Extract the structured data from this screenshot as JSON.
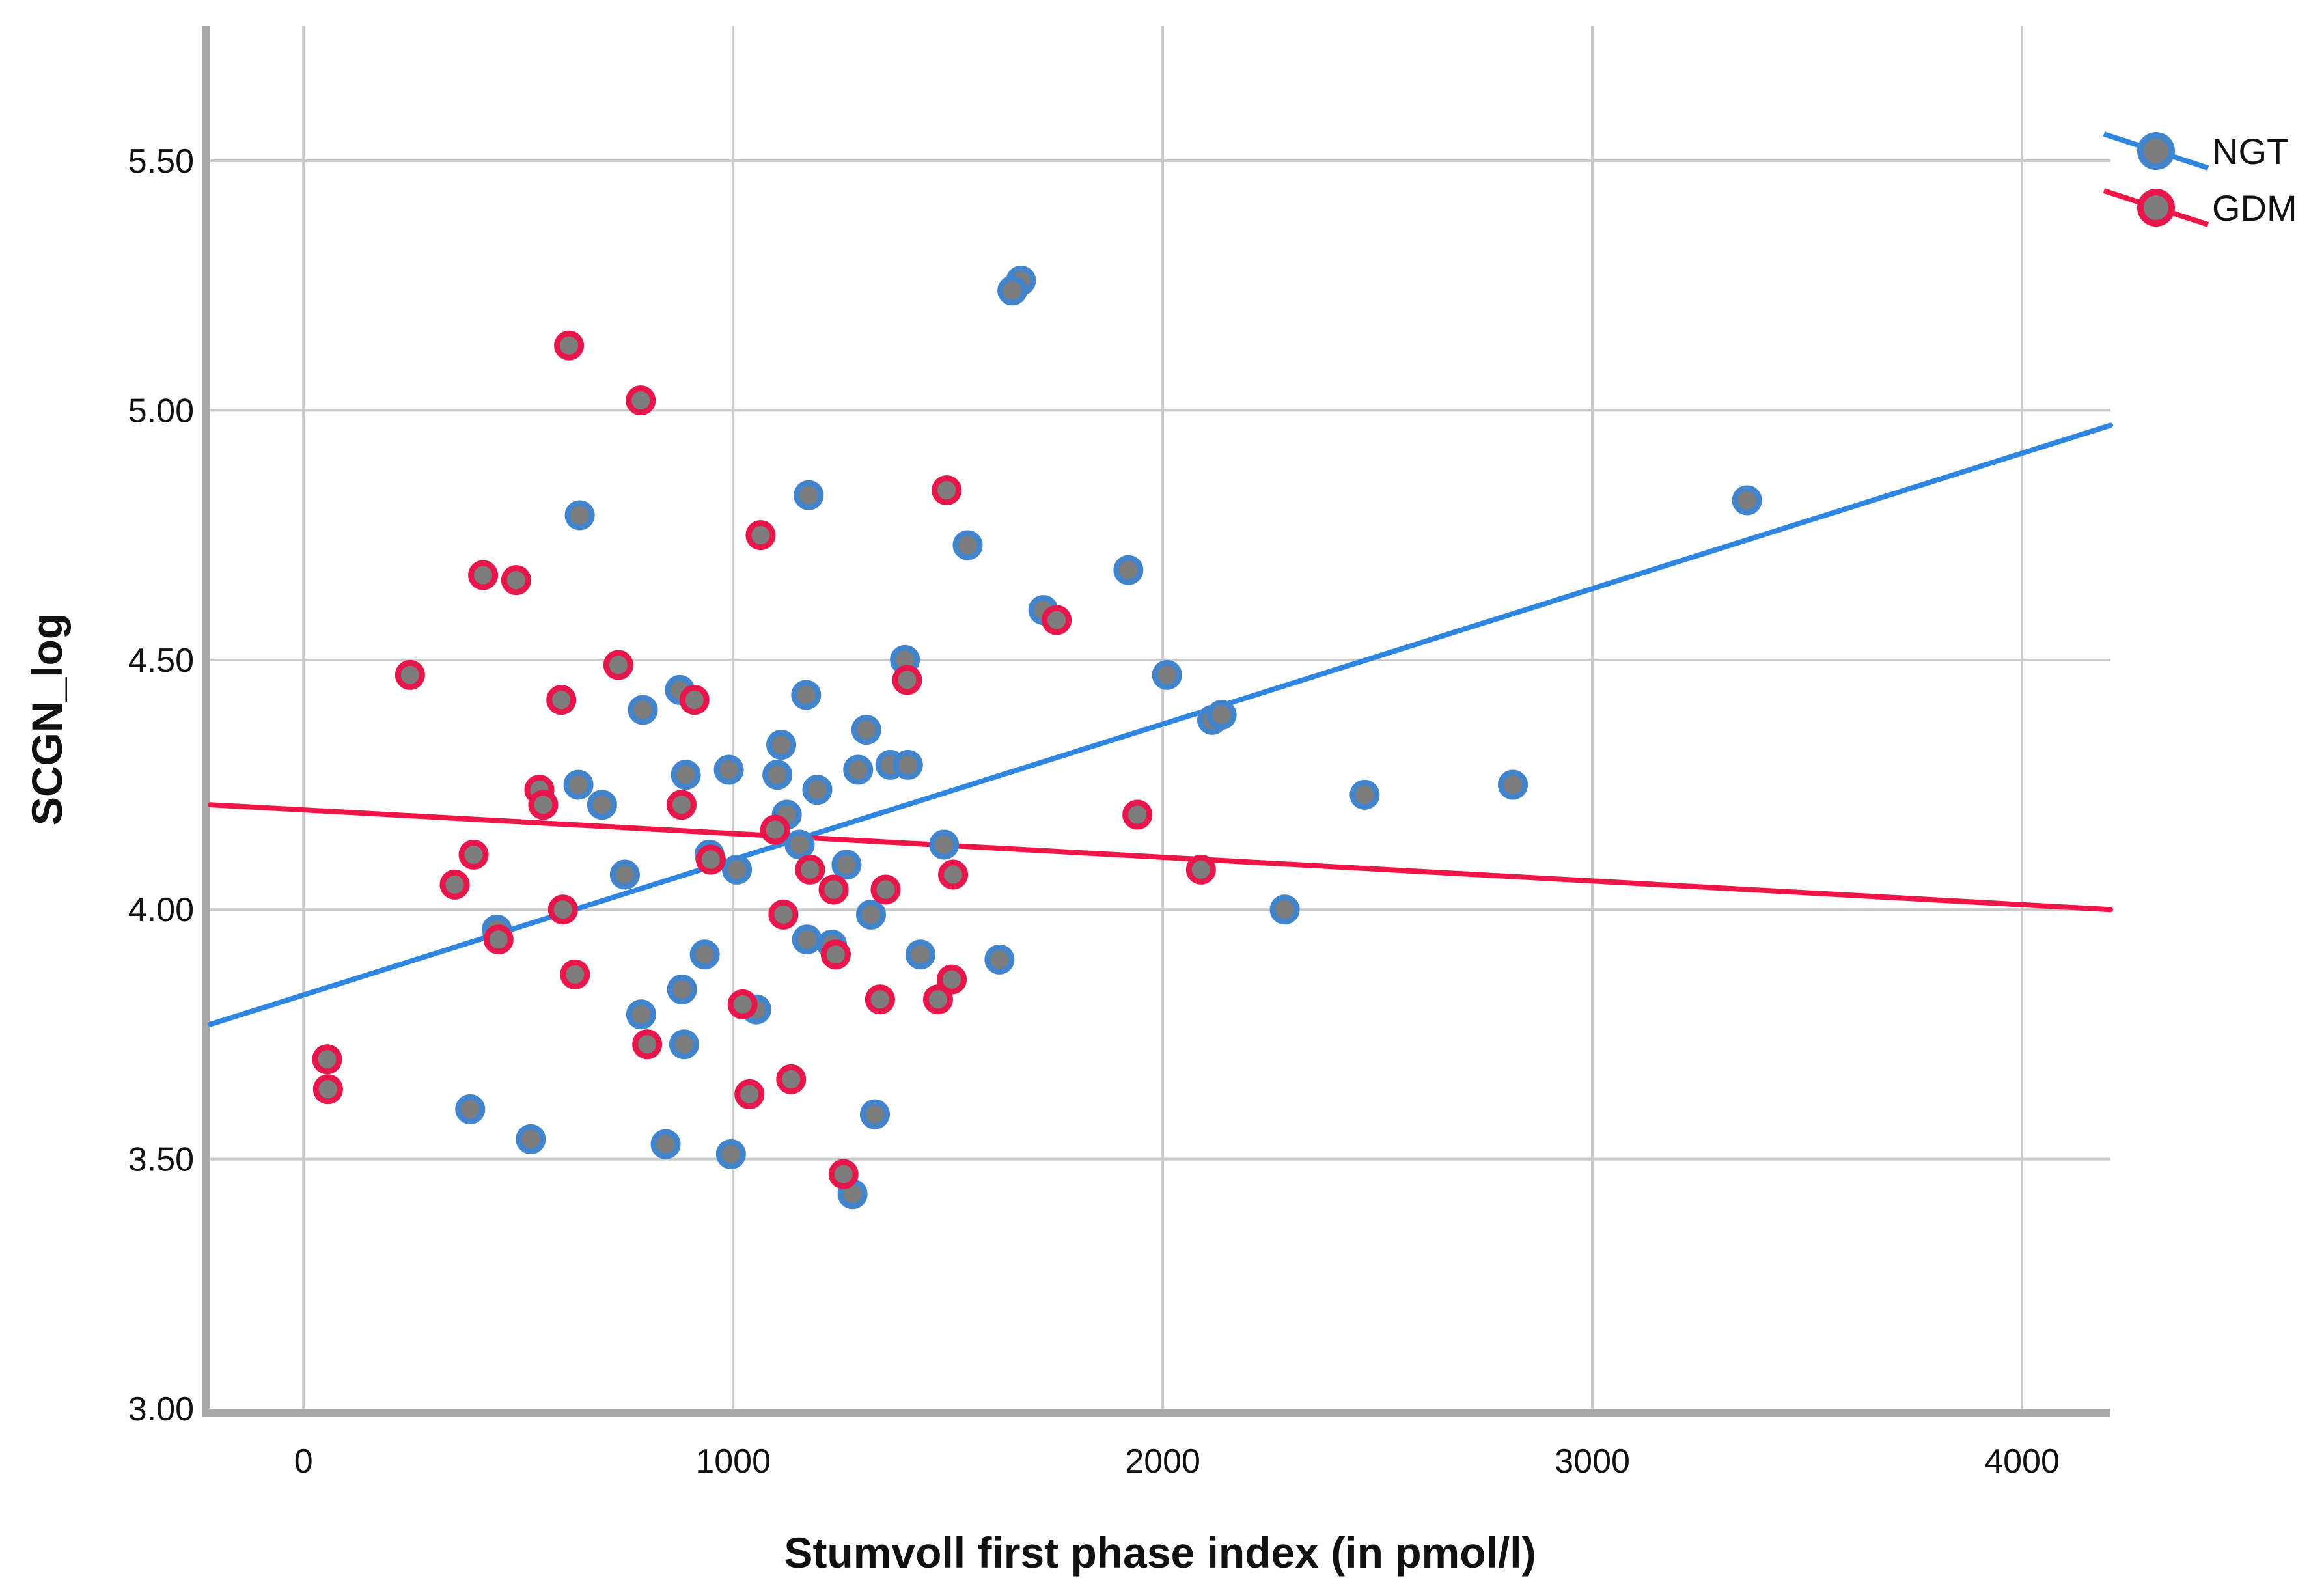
{
  "chart_data": {
    "type": "scatter",
    "title": "",
    "xlabel": "Stumvoll first phase index (in pmol/l)",
    "ylabel": "SCGN_log",
    "xlim": [
      -217,
      4206
    ],
    "ylim": [
      3.0,
      5.77
    ],
    "grid": true,
    "x_ticks": [
      {
        "v": 0,
        "label": "0"
      },
      {
        "v": 1000,
        "label": "1000"
      },
      {
        "v": 2000,
        "label": "2000"
      },
      {
        "v": 3000,
        "label": "3000"
      },
      {
        "v": 4000,
        "label": "4000"
      }
    ],
    "y_ticks": [
      {
        "v": 3.0,
        "label": "3.00"
      },
      {
        "v": 3.5,
        "label": "3.50"
      },
      {
        "v": 4.0,
        "label": "4.00"
      },
      {
        "v": 4.5,
        "label": "4.50"
      },
      {
        "v": 5.0,
        "label": "5.00"
      },
      {
        "v": 5.5,
        "label": "5.50"
      }
    ],
    "colors": {
      "ngt_ring": "#4385cc",
      "ngt_line": "#2f86e0",
      "gdm_ring": "#e8174b",
      "gdm_line": "#ef1547",
      "marker_fill": "#7d7d7d",
      "gridline": "#c9c9c9",
      "axis_bar": "#a6a6a6"
    },
    "legend": {
      "position": "top-right-outside",
      "entries": [
        {
          "label": "NGT",
          "color": "#4385cc"
        },
        {
          "label": "GDM",
          "color": "#e8174b"
        }
      ]
    },
    "series": [
      {
        "name": "NGT",
        "fit_line": {
          "x1": -217,
          "y1": 3.77,
          "x2": 4206,
          "y2": 4.97
        },
        "points": [
          [
            1670,
            5.26
          ],
          [
            1650,
            5.24
          ],
          [
            643,
            4.79
          ],
          [
            1176,
            4.83
          ],
          [
            3360,
            4.82
          ],
          [
            1546,
            4.73
          ],
          [
            1920,
            4.68
          ],
          [
            1722,
            4.6
          ],
          [
            2010,
            4.47
          ],
          [
            2115,
            4.38
          ],
          [
            2137,
            4.39
          ],
          [
            2470,
            4.23
          ],
          [
            2815,
            4.25
          ],
          [
            790,
            4.4
          ],
          [
            876,
            4.44
          ],
          [
            1170,
            4.43
          ],
          [
            1400,
            4.5
          ],
          [
            1310,
            4.36
          ],
          [
            1112,
            4.33
          ],
          [
            1103,
            4.27
          ],
          [
            990,
            4.28
          ],
          [
            640,
            4.25
          ],
          [
            695,
            4.21
          ],
          [
            748,
            4.07
          ],
          [
            450,
            3.96
          ],
          [
            890,
            4.27
          ],
          [
            1291,
            4.28
          ],
          [
            1366,
            4.29
          ],
          [
            1407,
            4.29
          ],
          [
            1196,
            4.24
          ],
          [
            1125,
            4.19
          ],
          [
            1155,
            4.13
          ],
          [
            945,
            4.11
          ],
          [
            1009,
            4.08
          ],
          [
            1264,
            4.09
          ],
          [
            1321,
            3.99
          ],
          [
            1491,
            4.13
          ],
          [
            1172,
            3.94
          ],
          [
            1230,
            3.93
          ],
          [
            934,
            3.91
          ],
          [
            1436,
            3.91
          ],
          [
            1620,
            3.9
          ],
          [
            1054,
            3.8
          ],
          [
            881,
            3.84
          ],
          [
            786,
            3.79
          ],
          [
            886,
            3.73
          ],
          [
            2284,
            4.0
          ],
          [
            388,
            3.6
          ],
          [
            529,
            3.54
          ],
          [
            843,
            3.53
          ],
          [
            995,
            3.51
          ],
          [
            1330,
            3.59
          ],
          [
            1278,
            3.43
          ]
        ]
      },
      {
        "name": "GDM",
        "fit_line": {
          "x1": -217,
          "y1": 4.21,
          "x2": 4206,
          "y2": 4.0
        },
        "points": [
          [
            618,
            5.13
          ],
          [
            785,
            5.02
          ],
          [
            1064,
            4.75
          ],
          [
            1497,
            4.84
          ],
          [
            418,
            4.67
          ],
          [
            495,
            4.66
          ],
          [
            248,
            4.47
          ],
          [
            733,
            4.49
          ],
          [
            600,
            4.42
          ],
          [
            910,
            4.42
          ],
          [
            1405,
            4.46
          ],
          [
            1753,
            4.58
          ],
          [
            1941,
            4.19
          ],
          [
            2089,
            4.08
          ],
          [
            549,
            4.24
          ],
          [
            558,
            4.21
          ],
          [
            396,
            4.11
          ],
          [
            352,
            4.05
          ],
          [
            604,
            4.0
          ],
          [
            454,
            3.94
          ],
          [
            632,
            3.87
          ],
          [
            55,
            3.7
          ],
          [
            57,
            3.64
          ],
          [
            880,
            4.21
          ],
          [
            1098,
            4.16
          ],
          [
            948,
            4.1
          ],
          [
            1179,
            4.08
          ],
          [
            1234,
            4.04
          ],
          [
            1355,
            4.04
          ],
          [
            1512,
            4.07
          ],
          [
            1117,
            3.99
          ],
          [
            1239,
            3.91
          ],
          [
            1509,
            3.86
          ],
          [
            1477,
            3.82
          ],
          [
            1342,
            3.82
          ],
          [
            1022,
            3.81
          ],
          [
            800,
            3.73
          ],
          [
            1135,
            3.66
          ],
          [
            1038,
            3.63
          ],
          [
            1257,
            3.47
          ]
        ]
      }
    ]
  }
}
